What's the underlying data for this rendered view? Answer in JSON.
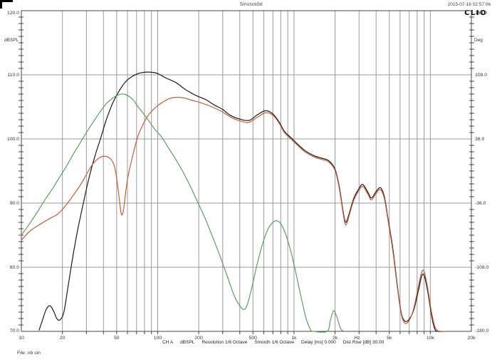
{
  "header": {
    "title": "Sinusoidal",
    "datetime": "2015-07-16 02:57:06",
    "logo": "CLIO"
  },
  "footer": {
    "file_label": "File: nb sin",
    "status_items": [
      "CH A",
      "dBSPL",
      "Resolution 1/6 Octave",
      "Smooth 1/6 Octave",
      "Delay [ms] 0.000",
      "Dist Rise [dB] 30.00"
    ]
  },
  "colors": {
    "grid": "#9a9a9a",
    "border": "#444444",
    "label_text": "#333333",
    "curve_black": "#1c1c1c",
    "curve_red": "#c65b3d",
    "curve_green": "#5f9e5f"
  },
  "chart_data": {
    "type": "line",
    "title": "Sinusoidal",
    "x_axis": {
      "scale": "log",
      "min": 10,
      "max": 20000,
      "unit": "Hz",
      "gridlines": [
        20,
        30,
        40,
        50,
        60,
        70,
        80,
        90,
        100,
        200,
        300,
        400,
        500,
        600,
        700,
        800,
        900,
        1000,
        2000,
        3000,
        4000,
        5000,
        6000,
        7000,
        8000,
        9000,
        10000
      ],
      "tick_labels": [
        {
          "freq": 10,
          "label": "10"
        },
        {
          "freq": 20,
          "label": "20"
        },
        {
          "freq": 50,
          "label": "50"
        },
        {
          "freq": 100,
          "label": "100"
        },
        {
          "freq": 200,
          "label": "200"
        },
        {
          "freq": 500,
          "label": "500"
        },
        {
          "freq": 1000,
          "label": "1k"
        },
        {
          "freq": 2000,
          "label": "2k"
        },
        {
          "freq": 2900,
          "label": "Hz"
        },
        {
          "freq": 5000,
          "label": "5k"
        },
        {
          "freq": 10000,
          "label": "10k"
        },
        {
          "freq": 20000,
          "label": "20k"
        }
      ]
    },
    "y_left": {
      "label": "dBSPL",
      "min": 70,
      "max": 120,
      "major_step": 10,
      "minor_step": 1,
      "tick_labels": [
        {
          "value": 120,
          "label": "120.0"
        },
        {
          "value": 110,
          "label": "110.0"
        },
        {
          "value": 100,
          "label": "100.0"
        },
        {
          "value": 90,
          "label": "90.0"
        },
        {
          "value": 80,
          "label": "80.0"
        },
        {
          "value": 70,
          "label": "70.0"
        }
      ]
    },
    "y_right": {
      "label": "Deg",
      "min": -180,
      "max": 180,
      "tick_labels": [
        {
          "value": 180,
          "label": "180.0"
        },
        {
          "value": 108,
          "label": "108.0"
        },
        {
          "value": 36,
          "label": "36.0"
        },
        {
          "value": -36,
          "label": "-36.0"
        },
        {
          "value": -108,
          "label": "-108.0"
        },
        {
          "value": -180,
          "label": "-180.0"
        }
      ]
    },
    "legend": "none",
    "grid": true,
    "series": [
      {
        "name": "total-response-black",
        "color_key": "curve_black",
        "points": [
          [
            13.5,
            70.2
          ],
          [
            14.2,
            71.6
          ],
          [
            15.2,
            73.4
          ],
          [
            16.2,
            74.0
          ],
          [
            17.2,
            73.2
          ],
          [
            18.2,
            72.0
          ],
          [
            19.2,
            71.8
          ],
          [
            20.5,
            73.0
          ],
          [
            22,
            77.0
          ],
          [
            24,
            82.0
          ],
          [
            26,
            86.0
          ],
          [
            28.5,
            90.0
          ],
          [
            31,
            93.5
          ],
          [
            34.5,
            97.2
          ],
          [
            38,
            100.0
          ],
          [
            42,
            103.0
          ],
          [
            47,
            105.7
          ],
          [
            54,
            108.0
          ],
          [
            60,
            109.2
          ],
          [
            70,
            110.1
          ],
          [
            80,
            110.4
          ],
          [
            90,
            110.4
          ],
          [
            100,
            110.2
          ],
          [
            115,
            109.5
          ],
          [
            136,
            108.8
          ],
          [
            160,
            107.7
          ],
          [
            190,
            106.8
          ],
          [
            227,
            106.1
          ],
          [
            260,
            105.3
          ],
          [
            300,
            104.6
          ],
          [
            340,
            103.7
          ],
          [
            400,
            103.1
          ],
          [
            470,
            102.9
          ],
          [
            540,
            103.8
          ],
          [
            620,
            104.4
          ],
          [
            700,
            103.9
          ],
          [
            780,
            102.6
          ],
          [
            850,
            101.2
          ],
          [
            950,
            100.2
          ],
          [
            1050,
            99.3
          ],
          [
            1200,
            98.2
          ],
          [
            1400,
            97.4
          ],
          [
            1600,
            97.0
          ],
          [
            1800,
            96.6
          ],
          [
            2000,
            95.3
          ],
          [
            2150,
            92.5
          ],
          [
            2300,
            88.5
          ],
          [
            2400,
            87.0
          ],
          [
            2550,
            88.5
          ],
          [
            2750,
            90.8
          ],
          [
            3000,
            92.3
          ],
          [
            3200,
            92.9
          ],
          [
            3500,
            91.6
          ],
          [
            3700,
            90.8
          ],
          [
            4000,
            91.8
          ],
          [
            4300,
            92.4
          ],
          [
            4600,
            91.0
          ],
          [
            4900,
            87.5
          ],
          [
            5300,
            83.0
          ],
          [
            5700,
            77.5
          ],
          [
            6100,
            73.0
          ],
          [
            6500,
            71.6
          ],
          [
            7000,
            71.9
          ],
          [
            7600,
            73.5
          ],
          [
            8200,
            76.5
          ],
          [
            8700,
            78.8
          ],
          [
            9100,
            78.4
          ],
          [
            9600,
            76.0
          ],
          [
            10200,
            72.5
          ],
          [
            10800,
            70.3
          ],
          [
            11500,
            70.0
          ],
          [
            12000,
            70.0
          ]
        ]
      },
      {
        "name": "port-or-filtered-response-red",
        "color_key": "curve_red",
        "points": [
          [
            10,
            84.2
          ],
          [
            11,
            85.2
          ],
          [
            12,
            85.9
          ],
          [
            13.5,
            86.6
          ],
          [
            15,
            87.2
          ],
          [
            16.5,
            87.7
          ],
          [
            18.2,
            88.2
          ],
          [
            20,
            89.0
          ],
          [
            22,
            90.1
          ],
          [
            24,
            91.2
          ],
          [
            26.5,
            92.5
          ],
          [
            28.5,
            93.6
          ],
          [
            31,
            95.0
          ],
          [
            34,
            96.3
          ],
          [
            37.5,
            97.1
          ],
          [
            40,
            97.3
          ],
          [
            43,
            97.2
          ],
          [
            45.5,
            96.8
          ],
          [
            47.7,
            96.0
          ],
          [
            49.5,
            94.5
          ],
          [
            51,
            92.5
          ],
          [
            52.5,
            90.3
          ],
          [
            53.8,
            88.5
          ],
          [
            55,
            88.2
          ],
          [
            56.5,
            89.3
          ],
          [
            58.5,
            92.0
          ],
          [
            61,
            94.5
          ],
          [
            65,
            97.0
          ],
          [
            71,
            100.2
          ],
          [
            77,
            102.0
          ],
          [
            84,
            103.5
          ],
          [
            92,
            104.5
          ],
          [
            100,
            105.2
          ],
          [
            110,
            105.8
          ],
          [
            122,
            106.3
          ],
          [
            136,
            106.5
          ],
          [
            155,
            106.4
          ],
          [
            180,
            106.0
          ],
          [
            210,
            105.6
          ],
          [
            250,
            105.0
          ],
          [
            300,
            104.2
          ],
          [
            350,
            103.3
          ],
          [
            420,
            102.7
          ],
          [
            470,
            102.6
          ],
          [
            540,
            103.4
          ],
          [
            620,
            104.1
          ],
          [
            700,
            103.7
          ],
          [
            780,
            102.4
          ],
          [
            850,
            101.0
          ],
          [
            950,
            100.0
          ],
          [
            1050,
            99.1
          ],
          [
            1200,
            98.0
          ],
          [
            1400,
            97.2
          ],
          [
            1600,
            96.8
          ],
          [
            1800,
            96.4
          ],
          [
            2000,
            95.1
          ],
          [
            2150,
            92.2
          ],
          [
            2300,
            88.2
          ],
          [
            2400,
            86.6
          ],
          [
            2550,
            88.2
          ],
          [
            2750,
            90.5
          ],
          [
            3000,
            92.0
          ],
          [
            3200,
            92.6
          ],
          [
            3500,
            91.3
          ],
          [
            3700,
            90.5
          ],
          [
            4000,
            91.5
          ],
          [
            4300,
            92.1
          ],
          [
            4600,
            90.7
          ],
          [
            4900,
            87.2
          ],
          [
            5300,
            82.6
          ],
          [
            5700,
            77.2
          ],
          [
            6100,
            72.8
          ],
          [
            6500,
            71.3
          ],
          [
            7000,
            71.7
          ],
          [
            7600,
            73.8
          ],
          [
            8200,
            77.2
          ],
          [
            8700,
            79.4
          ],
          [
            9100,
            79.0
          ],
          [
            9600,
            76.5
          ],
          [
            10200,
            73.0
          ],
          [
            10900,
            70.5
          ],
          [
            11800,
            70.0
          ],
          [
            12800,
            70.0
          ]
        ]
      },
      {
        "name": "nearfield-or-driver-response-green",
        "color_key": "curve_green",
        "points": [
          [
            10,
            85.0
          ],
          [
            11.5,
            86.8
          ],
          [
            13,
            88.5
          ],
          [
            15,
            90.6
          ],
          [
            17,
            92.3
          ],
          [
            19,
            94.0
          ],
          [
            21.5,
            95.8
          ],
          [
            24,
            97.6
          ],
          [
            27,
            99.4
          ],
          [
            30,
            101.0
          ],
          [
            34,
            102.8
          ],
          [
            38,
            104.3
          ],
          [
            42,
            105.5
          ],
          [
            47,
            106.4
          ],
          [
            52,
            106.9
          ],
          [
            56,
            107.0
          ],
          [
            61,
            106.7
          ],
          [
            66,
            106.1
          ],
          [
            72,
            105.0
          ],
          [
            79,
            103.9
          ],
          [
            87,
            102.7
          ],
          [
            96,
            101.4
          ],
          [
            107,
            100.3
          ],
          [
            120,
            98.6
          ],
          [
            135,
            96.9
          ],
          [
            152,
            95.0
          ],
          [
            172,
            92.8
          ],
          [
            195,
            90.3
          ],
          [
            222,
            87.7
          ],
          [
            252,
            84.8
          ],
          [
            287,
            81.7
          ],
          [
            325,
            78.5
          ],
          [
            365,
            75.5
          ],
          [
            400,
            74.0
          ],
          [
            430,
            73.4
          ],
          [
            455,
            74.2
          ],
          [
            490,
            76.8
          ],
          [
            530,
            80.0
          ],
          [
            580,
            83.2
          ],
          [
            640,
            85.8
          ],
          [
            700,
            87.0
          ],
          [
            760,
            87.2
          ],
          [
            820,
            86.4
          ],
          [
            880,
            84.8
          ],
          [
            950,
            82.4
          ],
          [
            1030,
            79.2
          ],
          [
            1120,
            75.6
          ],
          [
            1220,
            72.2
          ],
          [
            1320,
            70.3
          ],
          [
            1400,
            70.0
          ],
          [
            1750,
            70.0
          ],
          [
            1850,
            71.8
          ],
          [
            1950,
            73.2
          ],
          [
            2050,
            72.4
          ],
          [
            2200,
            70.4
          ],
          [
            2350,
            70.0
          ]
        ]
      }
    ]
  }
}
